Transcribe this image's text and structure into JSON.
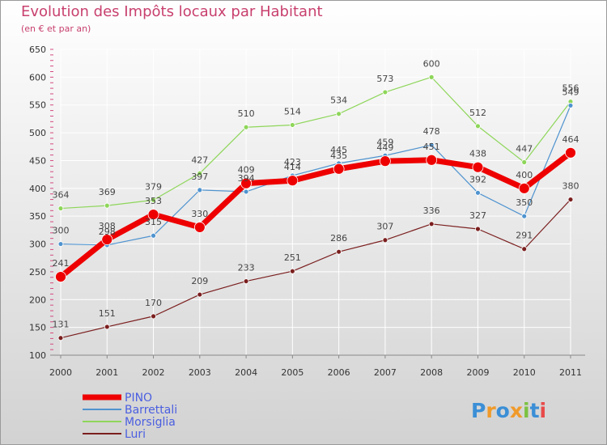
{
  "brand": {
    "letters": [
      "P",
      "r",
      "o",
      "x",
      "i",
      "t",
      "i"
    ],
    "colors": [
      "#3b8fd6",
      "#f09a2a",
      "#3b8fd6",
      "#f09a2a",
      "#7cc242",
      "#3b8fd6",
      "#e84a4a"
    ]
  },
  "chart_data": {
    "type": "line",
    "title": "Evolution des Impôts locaux par Habitant",
    "subtitle": "(en € et par an)",
    "categories": [
      "2000",
      "2001",
      "2002",
      "2003",
      "2004",
      "2005",
      "2006",
      "2007",
      "2008",
      "2009",
      "2010",
      "2011"
    ],
    "ylim": [
      100,
      650
    ],
    "yticks": [
      100,
      150,
      200,
      250,
      300,
      350,
      400,
      450,
      500,
      550,
      600,
      650
    ],
    "grid": true,
    "legend_position": "bottom-left",
    "series": [
      {
        "name": "Luri",
        "color": "#7b1f1f",
        "values": [
          131,
          151,
          170,
          209,
          233,
          251,
          286,
          307,
          336,
          327,
          291,
          380
        ]
      },
      {
        "name": "Morsiglia",
        "color": "#8ed65a",
        "values": [
          364,
          369,
          379,
          427,
          510,
          514,
          534,
          573,
          600,
          512,
          447,
          556
        ]
      },
      {
        "name": "Barrettali",
        "color": "#4f93cf",
        "values": [
          300,
          298,
          315,
          397,
          394,
          423,
          445,
          459,
          478,
          392,
          350,
          549
        ]
      },
      {
        "name": "PINO",
        "color": "#ee0000",
        "values": [
          241,
          308,
          353,
          330,
          409,
          414,
          435,
          449,
          451,
          438,
          400,
          464
        ]
      }
    ],
    "legend_order": [
      "PINO",
      "Barrettali",
      "Morsiglia",
      "Luri"
    ]
  }
}
